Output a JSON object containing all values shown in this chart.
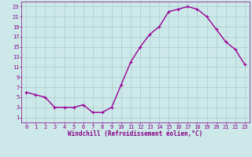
{
  "x": [
    0,
    1,
    2,
    3,
    4,
    5,
    6,
    7,
    8,
    9,
    10,
    11,
    12,
    13,
    14,
    15,
    16,
    17,
    18,
    19,
    20,
    21,
    22,
    23
  ],
  "y": [
    6,
    5.5,
    5,
    3,
    3,
    3,
    3.5,
    2,
    2,
    3,
    7.5,
    12,
    15,
    17.5,
    19,
    22,
    22.5,
    23,
    22.5,
    21,
    18.5,
    16,
    14.5,
    11.5
  ],
  "line_color": "#990099",
  "marker": "+",
  "marker_size": 3,
  "linewidth": 1.0,
  "bg_color": "#cce8e8",
  "grid_color": "#aacccc",
  "xlabel": "Windchill (Refroidissement éolien,°C)",
  "tick_color": "#880088",
  "xlim": [
    -0.5,
    23.5
  ],
  "ylim": [
    0,
    24
  ],
  "yticks": [
    1,
    3,
    5,
    7,
    9,
    11,
    13,
    15,
    17,
    19,
    21,
    23
  ],
  "xticks": [
    0,
    1,
    2,
    3,
    4,
    5,
    6,
    7,
    8,
    9,
    10,
    11,
    12,
    13,
    14,
    15,
    16,
    17,
    18,
    19,
    20,
    21,
    22,
    23
  ],
  "tick_fontsize": 5.0,
  "xlabel_fontsize": 5.5
}
